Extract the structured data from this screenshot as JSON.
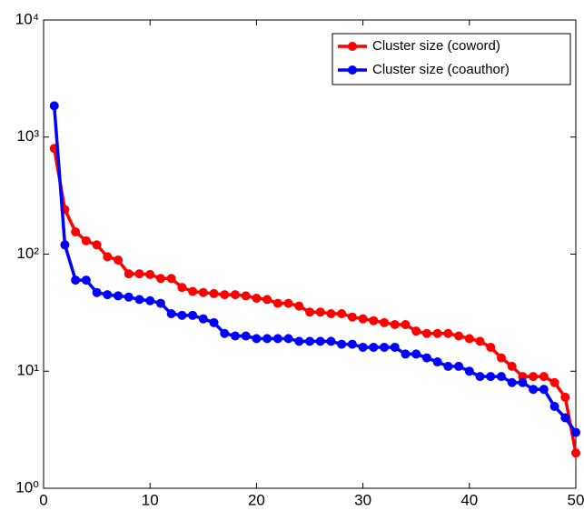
{
  "chart_data": {
    "type": "line",
    "log_y": true,
    "legend": "upper right",
    "xlim": [
      0,
      50
    ],
    "xticks": [
      0,
      10,
      20,
      30,
      40,
      50
    ],
    "ylim": [
      1,
      10000
    ],
    "yticks": [
      {
        "value": 1,
        "label": "10⁰"
      },
      {
        "value": 10,
        "label": "10¹"
      },
      {
        "value": 100,
        "label": "10²"
      },
      {
        "value": 1000,
        "label": "10³"
      },
      {
        "value": 10000,
        "label": "10⁴"
      }
    ],
    "x": [
      1,
      2,
      3,
      4,
      5,
      6,
      7,
      8,
      9,
      10,
      11,
      12,
      13,
      14,
      15,
      16,
      17,
      18,
      19,
      20,
      21,
      22,
      23,
      24,
      25,
      26,
      27,
      28,
      29,
      30,
      31,
      32,
      33,
      34,
      35,
      36,
      37,
      38,
      39,
      40,
      41,
      42,
      43,
      44,
      45,
      46,
      47,
      48,
      49,
      50
    ],
    "series": [
      {
        "name": "Cluster size (coword)",
        "color": "#ff0000",
        "values": [
          800,
          240,
          155,
          130,
          120,
          95,
          89,
          68,
          68,
          67,
          62,
          62,
          52,
          48,
          47,
          46,
          45,
          45,
          44,
          42,
          41,
          38,
          38,
          36,
          32,
          32,
          31,
          31,
          29,
          28,
          27,
          26,
          25,
          25,
          22,
          21,
          21,
          21,
          20,
          19,
          18,
          16,
          13,
          11,
          9,
          9,
          9,
          8,
          6,
          2
        ]
      },
      {
        "name": "Cluster size (coauthor)",
        "color": "#0000ff",
        "values": [
          1850,
          120,
          60,
          60,
          47,
          45,
          44,
          43,
          41,
          40,
          38,
          31,
          30,
          30,
          28,
          26,
          21,
          20,
          20,
          19,
          19,
          19,
          19,
          18,
          18,
          18,
          18,
          17,
          17,
          16,
          16,
          16,
          16,
          14,
          14,
          13,
          12,
          11,
          11,
          10,
          9,
          9,
          9,
          8,
          8,
          7,
          7,
          5,
          4,
          3
        ]
      }
    ]
  }
}
